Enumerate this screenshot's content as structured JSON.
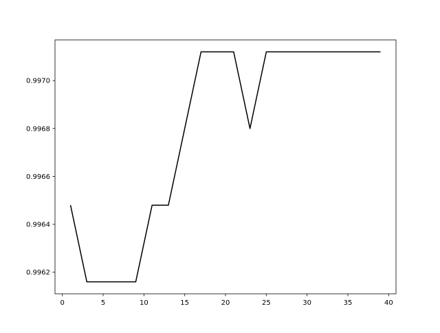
{
  "chart_data": {
    "type": "line",
    "title": "",
    "xlabel": "",
    "ylabel": "",
    "x": [
      1,
      3,
      5,
      7,
      9,
      11,
      13,
      15,
      17,
      19,
      21,
      23,
      25,
      27,
      29,
      31,
      33,
      35,
      37,
      39
    ],
    "series": [
      {
        "values": [
          0.99648,
          0.99616,
          0.99616,
          0.99616,
          0.99616,
          0.99648,
          0.99648,
          0.9968,
          0.99712,
          0.99712,
          0.99712,
          0.9968,
          0.99712,
          0.99712,
          0.99712,
          0.99712,
          0.99712,
          0.99712,
          0.99712,
          0.99712
        ],
        "color": "#000000"
      }
    ],
    "xlim": [
      -0.9,
      40.9
    ],
    "ylim": [
      0.99611,
      0.99717
    ],
    "xticks": [
      0,
      5,
      10,
      15,
      20,
      25,
      30,
      35,
      40
    ],
    "yticks": [
      0.9962,
      0.9964,
      0.9966,
      0.9968,
      0.997
    ],
    "xtick_labels": [
      "0",
      "5",
      "10",
      "15",
      "20",
      "25",
      "30",
      "35",
      "40"
    ],
    "ytick_labels": [
      "0.9962",
      "0.9964",
      "0.9966",
      "0.9968",
      "0.9970"
    ],
    "grid": false,
    "legend": "none"
  }
}
